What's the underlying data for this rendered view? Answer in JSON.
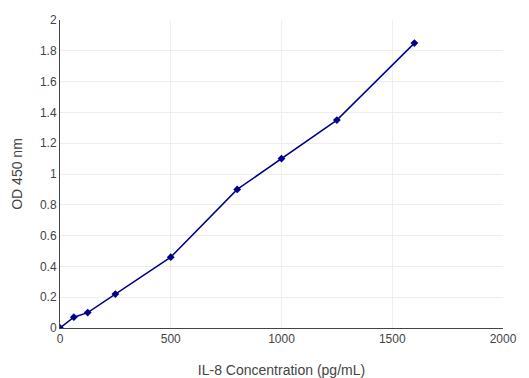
{
  "chart_data": {
    "type": "line",
    "x": [
      0,
      62.5,
      125,
      250,
      500,
      800,
      1000,
      1250,
      1600
    ],
    "values": [
      0.0,
      0.07,
      0.1,
      0.22,
      0.46,
      0.9,
      1.1,
      1.35,
      1.85
    ],
    "xlabel": "IL-8 Concentration (pg/mL)",
    "ylabel": "OD 450 nm",
    "xlim": [
      0,
      2000
    ],
    "ylim": [
      0,
      2
    ],
    "xticks": [
      0,
      500,
      1000,
      1500,
      2000
    ],
    "yticks": [
      0,
      0.2,
      0.4,
      0.6,
      0.8,
      1,
      1.2,
      1.4,
      1.6,
      1.8,
      2
    ],
    "color": "#00008B",
    "marker": "diamond",
    "line_style": "solid",
    "grid": true
  }
}
